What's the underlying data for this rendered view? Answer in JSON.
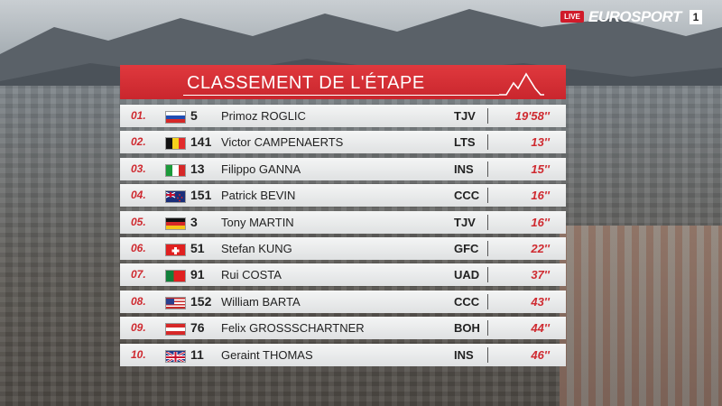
{
  "broadcast": {
    "live_label": "LIVE",
    "brand": "EUROSPORT",
    "channel": "1"
  },
  "board": {
    "title": "CLASSEMENT DE L'ÉTAPE",
    "accent_color": "#d32f35",
    "rows": [
      {
        "pos": "01.",
        "flag": "slovenia-flag-icon",
        "num": "5",
        "first": "Primoz",
        "last": "ROGLIC",
        "team": "TJV",
        "time": "19'58''"
      },
      {
        "pos": "02.",
        "flag": "belgium-flag-icon",
        "num": "141",
        "first": "Victor",
        "last": "CAMPENAERTS",
        "team": "LTS",
        "time": "13''"
      },
      {
        "pos": "03.",
        "flag": "italy-flag-icon",
        "num": "13",
        "first": "Filippo",
        "last": "GANNA",
        "team": "INS",
        "time": "15''"
      },
      {
        "pos": "04.",
        "flag": "new-zealand-flag-icon",
        "num": "151",
        "first": "Patrick",
        "last": "BEVIN",
        "team": "CCC",
        "time": "16''"
      },
      {
        "pos": "05.",
        "flag": "germany-flag-icon",
        "num": "3",
        "first": "Tony",
        "last": "MARTIN",
        "team": "TJV",
        "time": "16''"
      },
      {
        "pos": "06.",
        "flag": "switzerland-flag-icon",
        "num": "51",
        "first": "Stefan",
        "last": "KUNG",
        "team": "GFC",
        "time": "22''"
      },
      {
        "pos": "07.",
        "flag": "portugal-flag-icon",
        "num": "91",
        "first": "Rui",
        "last": "COSTA",
        "team": "UAD",
        "time": "37''"
      },
      {
        "pos": "08.",
        "flag": "usa-flag-icon",
        "num": "152",
        "first": "William",
        "last": "BARTA",
        "team": "CCC",
        "time": "43''"
      },
      {
        "pos": "09.",
        "flag": "austria-flag-icon",
        "num": "76",
        "first": "Felix",
        "last": "GROSSSCHARTNER",
        "team": "BOH",
        "time": "44''"
      },
      {
        "pos": "10.",
        "flag": "uk-flag-icon",
        "num": "11",
        "first": "Geraint",
        "last": "THOMAS",
        "team": "INS",
        "time": "46''"
      }
    ]
  }
}
